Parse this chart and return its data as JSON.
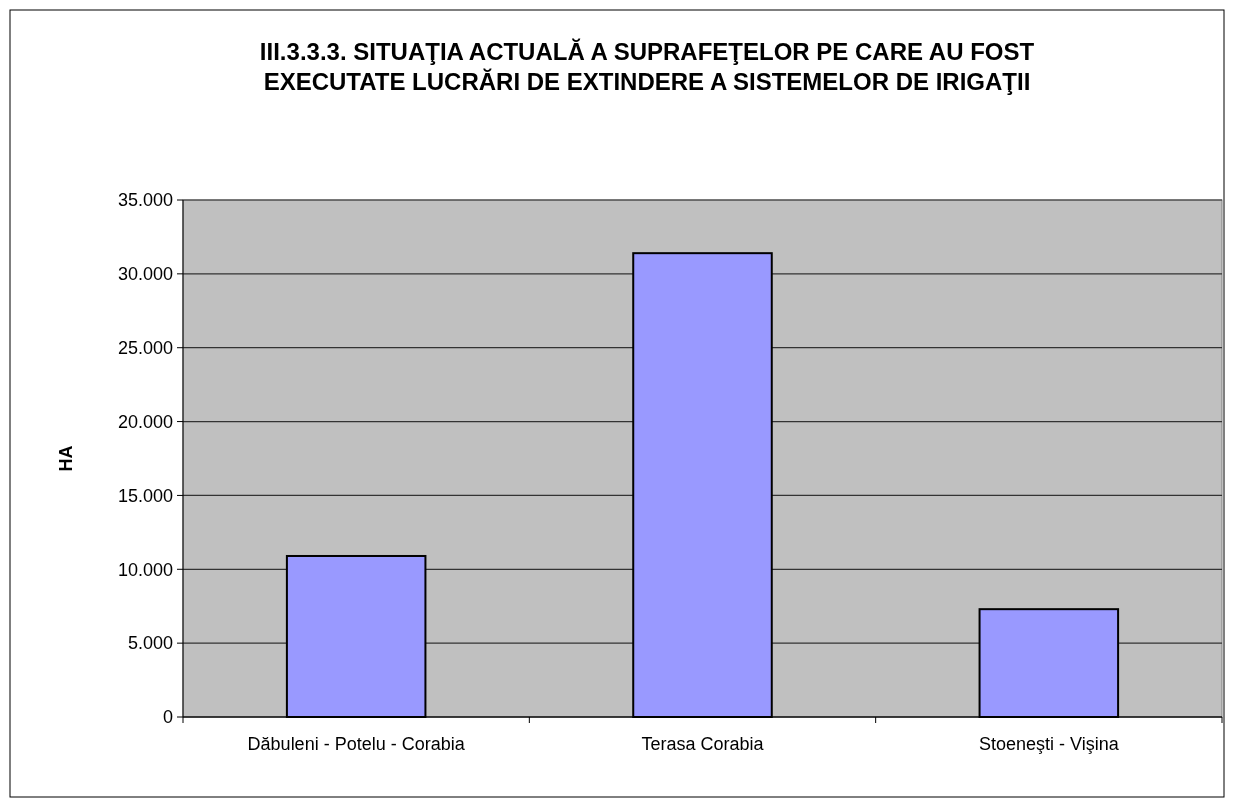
{
  "chart_data": {
    "type": "bar",
    "title": "III.3.3.3.  SITUAŢIA ACTUALĂ A SUPRAFEŢELOR PE CARE AU FOST EXECUTATE LUCRĂRI DE EXTINDERE A SISTEMELOR DE IRIGAŢII",
    "ylabel": "HA",
    "categories": [
      "Dăbuleni - Potelu - Corabia",
      "Terasa Corabia",
      "Stoeneşti - Vişina"
    ],
    "values": [
      10900,
      31400,
      7300
    ],
    "color": "#9999ff",
    "ylim": [
      0,
      35000
    ],
    "yticks": [
      0,
      {
        "value": 5000,
        "label": "5.000"
      },
      {
        "value": 10000,
        "label": "10.000"
      },
      {
        "value": 15000,
        "label": "15.000"
      },
      {
        "value": 20000,
        "label": "20.000"
      },
      {
        "value": 25000,
        "label": "25.000"
      },
      {
        "value": 30000,
        "label": "30.000"
      },
      {
        "value": 35000,
        "label": "35.000"
      }
    ],
    "grid": "y"
  }
}
